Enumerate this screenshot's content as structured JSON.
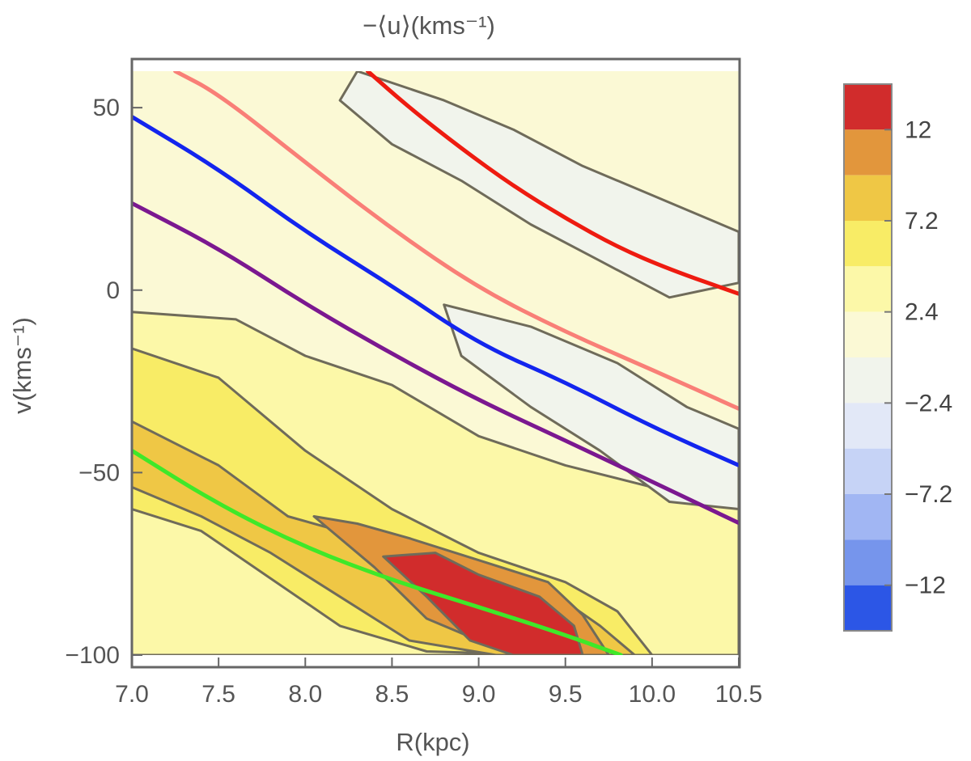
{
  "chart_data": {
    "type": "contour",
    "title": "−⟨u⟩(kms⁻¹)",
    "xlabel": "R(kpc)",
    "ylabel": "v(kms⁻¹)",
    "xlim": [
      7.0,
      10.5
    ],
    "ylim": [
      -100,
      60
    ],
    "x_ticks": [
      "7.0",
      "7.5",
      "8.0",
      "8.5",
      "9.0",
      "9.5",
      "10.0",
      "10.5"
    ],
    "x_tick_values": [
      7.0,
      7.5,
      8.0,
      8.5,
      9.0,
      9.5,
      10.0,
      10.5
    ],
    "y_ticks": [
      "50",
      "0",
      "−50",
      "−100"
    ],
    "y_tick_values": [
      50,
      0,
      -50,
      -100
    ],
    "colorbar": {
      "labels": [
        "12",
        "7.2",
        "2.4",
        "−2.4",
        "−7.2",
        "−12"
      ],
      "label_values": [
        12,
        7.2,
        2.4,
        -2.4,
        -7.2,
        -12
      ],
      "levels": [
        {
          "from": 12,
          "to": 14.4,
          "color": "#d12c2c"
        },
        {
          "from": 9.6,
          "to": 12,
          "color": "#e2963c"
        },
        {
          "from": 7.2,
          "to": 9.6,
          "color": "#efc745"
        },
        {
          "from": 4.8,
          "to": 7.2,
          "color": "#f8ec66"
        },
        {
          "from": 2.4,
          "to": 4.8,
          "color": "#fcf8a8"
        },
        {
          "from": 0,
          "to": 2.4,
          "color": "#fbf9d5"
        },
        {
          "from": -2.4,
          "to": 0,
          "color": "#f1f4ec"
        },
        {
          "from": -4.8,
          "to": -2.4,
          "color": "#e2e8f7"
        },
        {
          "from": -7.2,
          "to": -4.8,
          "color": "#c6d3f6"
        },
        {
          "from": -9.6,
          "to": -7.2,
          "color": "#a1b6f3"
        },
        {
          "from": -12,
          "to": -9.6,
          "color": "#7695ec"
        },
        {
          "from": -14.4,
          "to": -12,
          "color": "#2c56e6"
        }
      ]
    },
    "series": [
      {
        "name": "red",
        "color": "#ee1b10",
        "x": [
          8.36,
          8.6,
          8.9,
          9.2,
          9.5,
          9.8,
          10.1,
          10.5
        ],
        "y": [
          60,
          50,
          38.8,
          28.5,
          19.7,
          11.8,
          5.7,
          -1
        ]
      },
      {
        "name": "salmon",
        "color": "#f97f77",
        "x": [
          7.25,
          7.5,
          8.0,
          8.5,
          9.0,
          9.5,
          10.0,
          10.5
        ],
        "y": [
          60,
          53.8,
          35,
          16.7,
          0.5,
          -11.5,
          -21.8,
          -32.5
        ]
      },
      {
        "name": "blue",
        "color": "#1325ee",
        "x": [
          7.0,
          7.5,
          8.0,
          8.5,
          9.0,
          9.5,
          10.0,
          10.5
        ],
        "y": [
          47.5,
          33.2,
          16,
          1.2,
          -14.8,
          -25.2,
          -37.5,
          -48
        ]
      },
      {
        "name": "purple",
        "color": "#7b1890",
        "x": [
          7.0,
          7.5,
          8.0,
          8.5,
          9.0,
          9.5,
          10.0,
          10.5
        ],
        "y": [
          23.8,
          11.5,
          -3.8,
          -17.5,
          -30.2,
          -41.2,
          -52.5,
          -63.8
        ]
      },
      {
        "name": "green",
        "color": "#3fe829",
        "x": [
          7.0,
          7.5,
          8.0,
          8.5,
          9.0,
          9.5,
          9.82
        ],
        "y": [
          -44,
          -58.8,
          -70.5,
          -79.5,
          -86.8,
          -94.5,
          -100
        ]
      }
    ],
    "contour_regions": [
      {
        "level": 2.4,
        "x": [
          7.0,
          7.6,
          8.0,
          8.5,
          9.0,
          9.5,
          10.0,
          10.5,
          10.5,
          7.0
        ],
        "y": [
          -6,
          -8,
          -18,
          -26,
          -40,
          -48,
          -54,
          -55,
          -100,
          -100
        ]
      },
      {
        "level": 4.8,
        "x": [
          7.0,
          7.5,
          8.0,
          8.5,
          9.0,
          9.5,
          9.8,
          10.0,
          9.4,
          8.7,
          8.2,
          7.8,
          7.4,
          7.0
        ],
        "y": [
          -16,
          -24,
          -44,
          -60,
          -72,
          -80,
          -88,
          -100,
          -100,
          -99,
          -92,
          -79,
          -66,
          -60
        ]
      },
      {
        "level": 7.2,
        "x": [
          7.0,
          7.5,
          7.9,
          8.2,
          8.6,
          9.0,
          9.4,
          9.7,
          9.9,
          9.1,
          8.6,
          8.2,
          7.8,
          7.4,
          7.0
        ],
        "y": [
          -36,
          -48,
          -62,
          -66,
          -70,
          -76,
          -82,
          -92,
          -100,
          -100,
          -96,
          -84,
          -72,
          -62,
          -54
        ]
      },
      {
        "level": 9.6,
        "x": [
          8.05,
          8.3,
          8.6,
          9.0,
          9.4,
          9.6,
          9.75,
          9.3,
          9.0,
          8.7,
          8.4
        ],
        "y": [
          -62,
          -64,
          -68,
          -74,
          -80,
          -89,
          -100,
          -100,
          -96,
          -90,
          -76
        ]
      },
      {
        "level": 12,
        "x": [
          8.45,
          8.75,
          9.0,
          9.35,
          9.55,
          9.6,
          9.2,
          8.95,
          8.7
        ],
        "y": [
          -73,
          -72,
          -78,
          -84,
          -92,
          -100,
          -100,
          -96,
          -84
        ]
      },
      {
        "level": -2.4,
        "x": [
          8.3,
          8.8,
          9.2,
          9.6,
          10.0,
          10.5,
          10.5,
          10.1,
          9.7,
          9.3,
          8.9,
          8.5,
          8.2
        ],
        "y": [
          60,
          52,
          44,
          34,
          26,
          16,
          2,
          -2,
          8,
          18,
          30,
          40,
          52
        ]
      },
      {
        "level": -2.4,
        "x": [
          8.8,
          9.3,
          9.8,
          10.2,
          10.5,
          10.5,
          10.1,
          9.7,
          9.3,
          8.9
        ],
        "y": [
          -4,
          -10,
          -20,
          -32,
          -38,
          -60,
          -58,
          -44,
          -32,
          -18
        ]
      }
    ],
    "legend": "none",
    "grid": false
  }
}
